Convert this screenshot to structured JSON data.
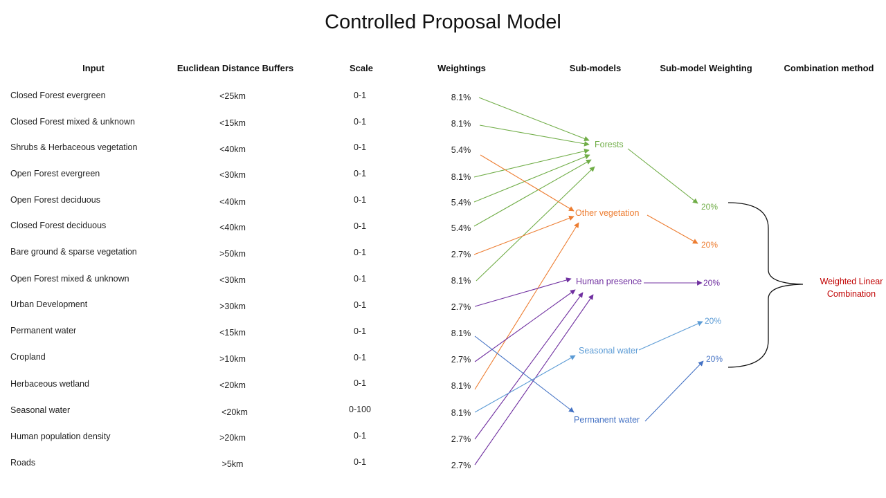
{
  "title": "Controlled Proposal Model",
  "headers": {
    "input": "Input",
    "buffers": "Euclidean Distance Buffers",
    "scale": "Scale",
    "weightings": "Weightings",
    "submodels": "Sub-models",
    "submodel_weighting": "Sub-model Weighting",
    "combination": "Combination method"
  },
  "rows": [
    {
      "input": "Closed Forest evergreen",
      "buffer": "<25km",
      "scale": "0-1",
      "weight": "8.1%"
    },
    {
      "input": "Closed Forest mixed & unknown",
      "buffer": "<15km",
      "scale": "0-1",
      "weight": "8.1%"
    },
    {
      "input": "Shrubs & Herbaceous vegetation",
      "buffer": "<40km",
      "scale": "0-1",
      "weight": "5.4%"
    },
    {
      "input": "Open Forest evergreen",
      "buffer": "<30km",
      "scale": "0-1",
      "weight": "8.1%"
    },
    {
      "input": "Open Forest deciduous",
      "buffer": "<40km",
      "scale": "0-1",
      "weight": "5.4%"
    },
    {
      "input": "Closed Forest deciduous",
      "buffer": "<40km",
      "scale": "0-1",
      "weight": "5.4%"
    },
    {
      "input": "Bare ground & sparse vegetation",
      "buffer": ">50km",
      "scale": "0-1",
      "weight": "2.7%"
    },
    {
      "input": "Open Forest mixed & unknown",
      "buffer": "<30km",
      "scale": "0-1",
      "weight": "8.1%"
    },
    {
      "input": "Urban Development",
      "buffer": ">30km",
      "scale": "0-1",
      "weight": "2.7%"
    },
    {
      "input": "Permanent water",
      "buffer": "<15km",
      "scale": "0-1",
      "weight": "8.1%"
    },
    {
      "input": "Cropland",
      "buffer": ">10km",
      "scale": "0-1",
      "weight": "2.7%"
    },
    {
      "input": "Herbaceous wetland",
      "buffer": "<20km",
      "scale": "0-1",
      "weight": "8.1%"
    },
    {
      "input": "Seasonal water",
      "buffer": "<20km",
      "scale": "0-100",
      "weight": "8.1%"
    },
    {
      "input": "Human population density",
      "buffer": ">20km",
      "scale": "0-1",
      "weight": "2.7%"
    },
    {
      "input": "Roads",
      "buffer": ">5km",
      "scale": "0-1",
      "weight": "2.7%"
    }
  ],
  "submodels": [
    {
      "id": "forests",
      "label": "Forests",
      "color": "#70ad47",
      "weight": "20%"
    },
    {
      "id": "other",
      "label": "Other vegetation",
      "color": "#ed7d31",
      "weight": "20%"
    },
    {
      "id": "human",
      "label": "Human presence",
      "color": "#7030a0",
      "weight": "20%"
    },
    {
      "id": "seasonal",
      "label": "Seasonal water",
      "color": "#5b9bd5",
      "weight": "20%"
    },
    {
      "id": "permanent",
      "label": "Permanent water",
      "color": "#4472c4",
      "weight": "20%"
    }
  ],
  "combination_method": {
    "line1": "Weighted Linear",
    "line2": "Combination",
    "color": "#c00000"
  }
}
